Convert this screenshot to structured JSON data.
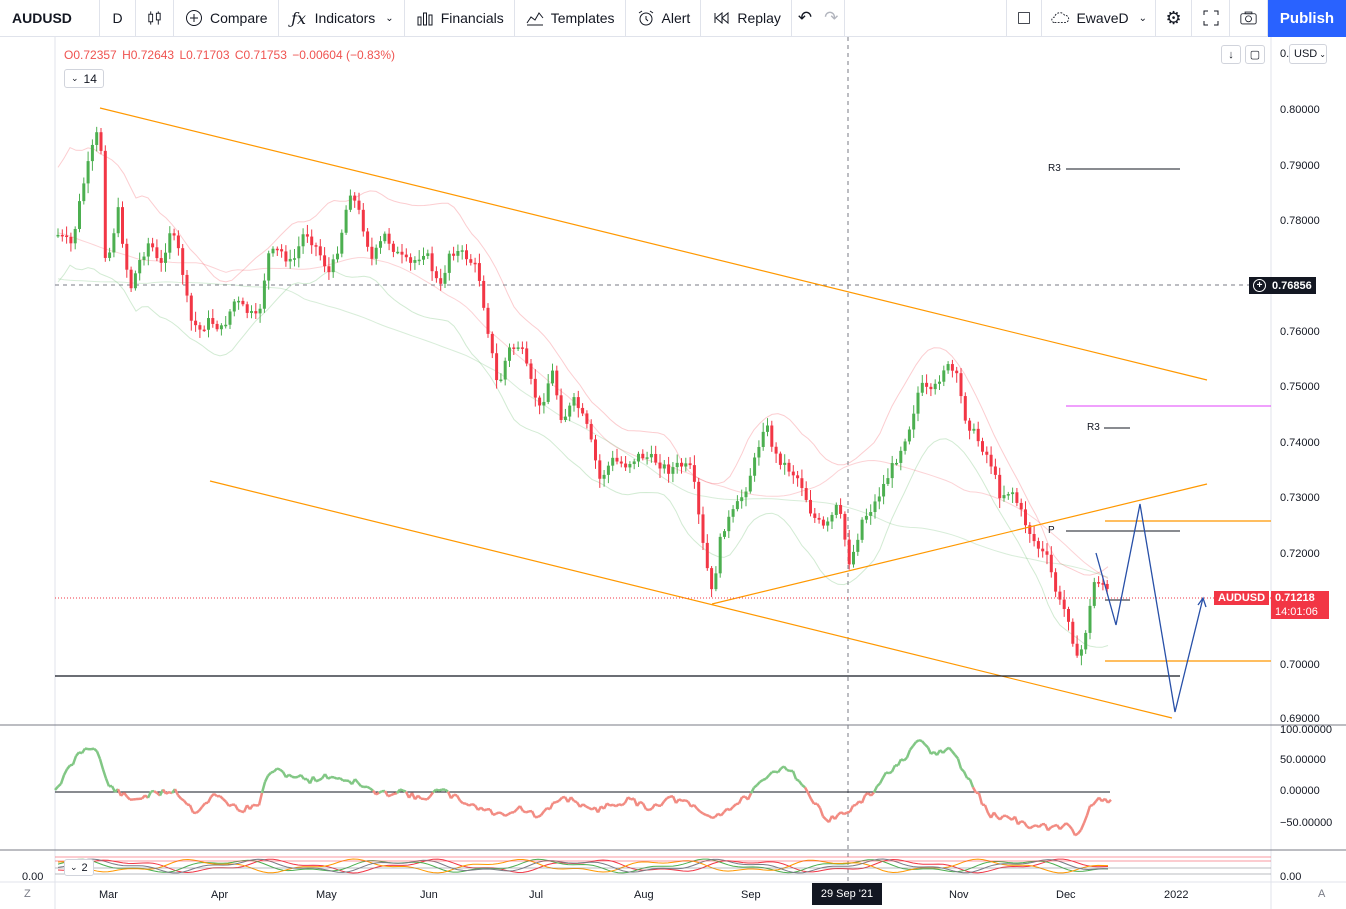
{
  "toolbar": {
    "symbol": "AUDUSD",
    "interval": "D",
    "compare_label": "Compare",
    "indicators_label": "Indicators",
    "financials_label": "Financials",
    "templates_label": "Templates",
    "alert_label": "Alert",
    "replay_label": "Replay",
    "layout_name": "EwaveD",
    "publish_label": "Publish"
  },
  "legend": {
    "open": "O0.72357",
    "high": "H0.72643",
    "low": "L0.71703",
    "close": "C0.71753",
    "change": "−0.00604 (−0.83%)",
    "indicator_param": "14",
    "sub_indicator_param": "2"
  },
  "price_scale": {
    "currency": "USD",
    "top_cut_label": "0.",
    "labels": [
      "0.80000",
      "0.79000",
      "0.78000",
      "0.77000",
      "0.76000",
      "0.75000",
      "0.74000",
      "0.73000",
      "0.72000",
      "0.71000",
      "0.70000",
      "0.69000"
    ],
    "current_symbol": "AUDUSD",
    "current_price": "0.71218",
    "countdown": "14:01:06",
    "crosshair_price": "0.76856"
  },
  "osc_scale": {
    "labels": [
      "100.00000",
      "50.00000",
      "0.00000",
      "−50.00000"
    ],
    "sub_left_label": "0.00",
    "sub_right_label": "0.00"
  },
  "time_axis": {
    "labels": [
      "Mar",
      "Apr",
      "May",
      "Jun",
      "Jul",
      "Aug",
      "Sep",
      "Nov",
      "Dec",
      "2022"
    ],
    "crosshair_date": "29 Sep '21",
    "left_corner": "Z",
    "right_corner": "A"
  },
  "annotations": {
    "r3_top": "R3",
    "r3_mid": "R3",
    "pivot": "P"
  },
  "colors": {
    "up": "#4caf50",
    "down": "#f23645",
    "channel": "#ff9800",
    "accent": "#2962ff",
    "osc_pos": "#81c784",
    "osc_neg": "#f28b82",
    "pivot_magenta": "#e040fb"
  }
}
